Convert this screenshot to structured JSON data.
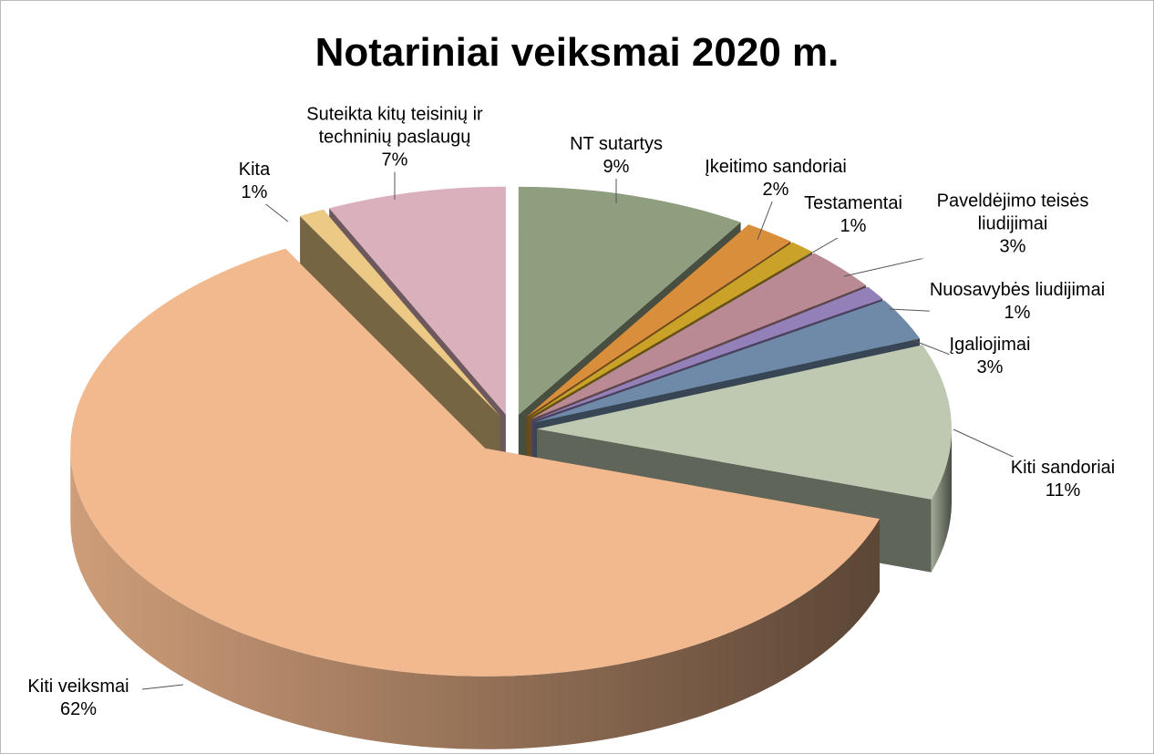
{
  "chart_data": {
    "type": "pie3d",
    "title": "Notariniai veiksmai 2020 m.",
    "categories": [
      "NT sutartys",
      "Įkeitimo sandoriai",
      "Testamentai",
      "Paveldėjimo teisės liudijimai",
      "Nuosavybės liudijimai",
      "Įgaliojimai",
      "Kiti sandoriai",
      "Kiti veiksmai",
      "Kita",
      "Suteikta kitų teisinių ir techninių paslaugų"
    ],
    "values": [
      9,
      2,
      1,
      3,
      1,
      3,
      11,
      62,
      1,
      7
    ],
    "value_labels": [
      "9%",
      "2%",
      "1%",
      "3%",
      "1%",
      "3%",
      "11%",
      "62%",
      "1%",
      "7%"
    ],
    "colors": [
      "#8f9e7f",
      "#d98e3b",
      "#c9a227",
      "#b98a94",
      "#9480b8",
      "#6e8aa8",
      "#bfc9b2",
      "#f2b98e",
      "#ecc985",
      "#d9b0bb"
    ]
  }
}
